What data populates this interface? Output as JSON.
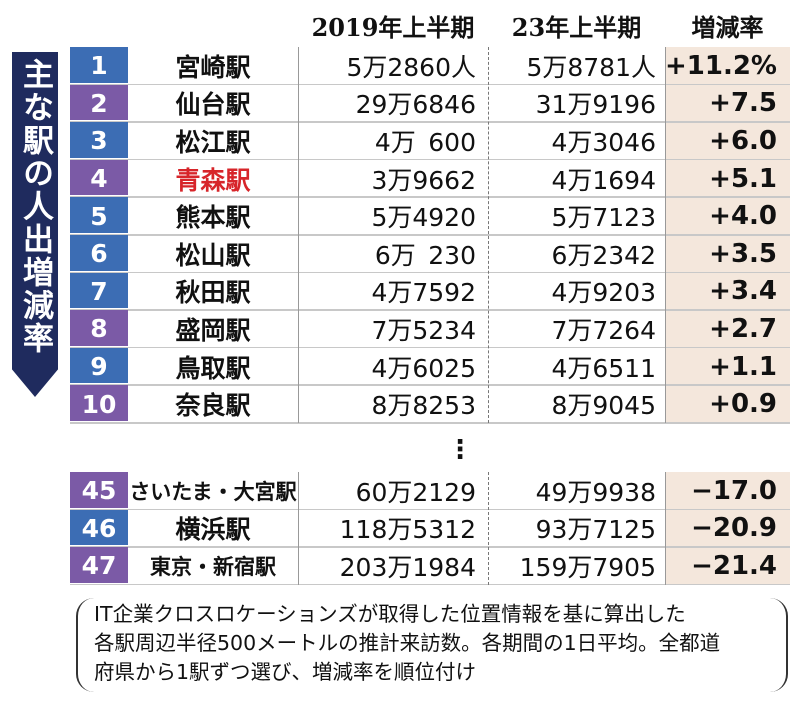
{
  "title": "主な駅の人出増減率",
  "header": {
    "col_2019": "2019年上半期",
    "col_2023": "23年上半期",
    "col_rate": "増減率"
  },
  "rows": [
    {
      "rank": "1",
      "station": "宮崎駅",
      "v2019": "5万2860人",
      "v2023": "5万8781人",
      "rate": "+11.2%",
      "color": "#3c6db4"
    },
    {
      "rank": "2",
      "station": "仙台駅",
      "v2019": "29万6846",
      "v2023": "31万9196",
      "rate": "+7.5",
      "color": "#7b5aa6"
    },
    {
      "rank": "3",
      "station": "松江駅",
      "v2019": "4万 600",
      "v2023": "4万3046",
      "rate": "+6.0",
      "color": "#3c6db4"
    },
    {
      "rank": "4",
      "station": "青森駅",
      "v2019": "3万9662",
      "v2023": "4万1694",
      "rate": "+5.1",
      "color": "#7b5aa6",
      "station_color": "#d7252a"
    },
    {
      "rank": "5",
      "station": "熊本駅",
      "v2019": "5万4920",
      "v2023": "5万7123",
      "rate": "+4.0",
      "color": "#3c6db4"
    },
    {
      "rank": "6",
      "station": "松山駅",
      "v2019": "6万 230",
      "v2023": "6万2342",
      "rate": "+3.5",
      "color": "#3c6db4"
    },
    {
      "rank": "7",
      "station": "秋田駅",
      "v2019": "4万7592",
      "v2023": "4万9203",
      "rate": "+3.4",
      "color": "#3c6db4"
    },
    {
      "rank": "8",
      "station": "盛岡駅",
      "v2019": "7万5234",
      "v2023": "7万7264",
      "rate": "+2.7",
      "color": "#7b5aa6"
    },
    {
      "rank": "9",
      "station": "鳥取駅",
      "v2019": "4万6025",
      "v2023": "4万6511",
      "rate": "+1.1",
      "color": "#3c6db4"
    },
    {
      "rank": "10",
      "station": "奈良駅",
      "v2019": "8万8253",
      "v2023": "8万9045",
      "rate": "+0.9",
      "color": "#7b5aa6"
    },
    {
      "rank": "45",
      "station": "さいたま・大宮駅",
      "v2019": "60万2129",
      "v2023": "49万9938",
      "rate": "−17.0",
      "color": "#7b5aa6"
    },
    {
      "rank": "46",
      "station": "横浜駅",
      "v2019": "118万5312",
      "v2023": "93万7125",
      "rate": "−20.9",
      "color": "#3c6db4"
    },
    {
      "rank": "47",
      "station": "東京・新宿駅",
      "v2019": "203万1984",
      "v2023": "159万7905",
      "rate": "−21.4",
      "color": "#7b5aa6"
    }
  ],
  "ellipsis": "⋮",
  "note": [
    "IT企業クロスロケーションズが取得した位置情報を基に算出した",
    "各駅周辺半径500メートルの推計来訪数。各期間の1日平均。全都道",
    "府県から1駅ずつ選び、増減率を順位付け"
  ]
}
